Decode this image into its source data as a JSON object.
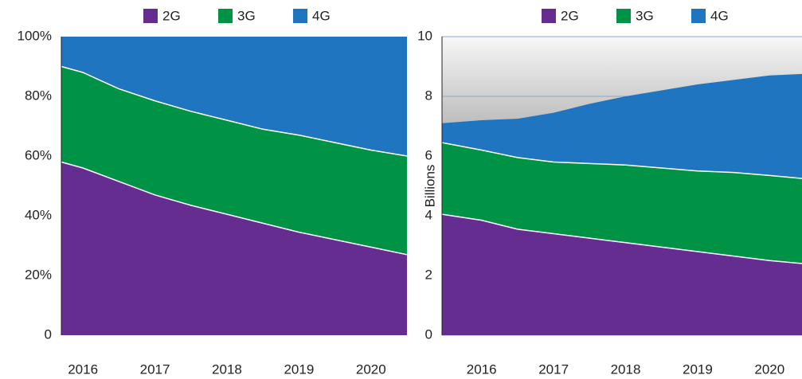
{
  "chart_data": [
    {
      "type": "stacked_area",
      "x": [
        2015.7,
        2016,
        2016.5,
        2017,
        2017.5,
        2018,
        2018.5,
        2019,
        2019.5,
        2020,
        2020.5
      ],
      "xlim": [
        2015.7,
        2020.5
      ],
      "xticks": [
        2016,
        2017,
        2018,
        2019,
        2020
      ],
      "ylim": [
        0,
        100
      ],
      "yticks": [
        0,
        {
          "value": 20,
          "label": "20%"
        },
        {
          "value": 40,
          "label": "40%"
        },
        {
          "value": 60,
          "label": "60%"
        },
        {
          "value": 80,
          "label": "80%"
        },
        {
          "value": 100,
          "label": "100%"
        }
      ],
      "grid": false,
      "series": [
        {
          "name": "2G",
          "color": "#662d91",
          "values": [
            58,
            56,
            51.5,
            47,
            43.5,
            40.5,
            37.5,
            34.5,
            32,
            29.5,
            27
          ]
        },
        {
          "name": "3G",
          "color": "#009245",
          "values": [
            32,
            32,
            31,
            31.5,
            31.5,
            31.5,
            31.5,
            32.5,
            32.5,
            32.5,
            33
          ]
        },
        {
          "name": "4G",
          "color": "#1f75bf",
          "values": [
            10,
            12,
            17.5,
            21.5,
            25,
            28,
            31,
            33,
            35.5,
            38,
            40
          ]
        }
      ]
    },
    {
      "type": "stacked_area",
      "y_label": "Billions",
      "x": [
        2015.45,
        2016,
        2016.5,
        2017,
        2017.5,
        2018,
        2018.5,
        2019,
        2019.5,
        2020,
        2020.45
      ],
      "xlim": [
        2015.45,
        2020.45
      ],
      "xticks": [
        2016,
        2017,
        2018,
        2019,
        2020
      ],
      "ylim": [
        0,
        10
      ],
      "yticks": [
        0,
        2,
        4,
        6,
        8,
        10
      ],
      "grid": true,
      "series": [
        {
          "name": "2G",
          "color": "#662d91",
          "values": [
            4.05,
            3.85,
            3.55,
            3.4,
            3.25,
            3.1,
            2.95,
            2.8,
            2.65,
            2.5,
            2.4
          ]
        },
        {
          "name": "3G",
          "color": "#009245",
          "values": [
            2.4,
            2.35,
            2.4,
            2.4,
            2.5,
            2.6,
            2.65,
            2.7,
            2.8,
            2.85,
            2.85
          ]
        },
        {
          "name": "4G",
          "color": "#1f75bf",
          "values": [
            0.65,
            1.0,
            1.3,
            1.65,
            2.0,
            2.3,
            2.6,
            2.9,
            3.1,
            3.35,
            3.5
          ]
        }
      ]
    }
  ]
}
